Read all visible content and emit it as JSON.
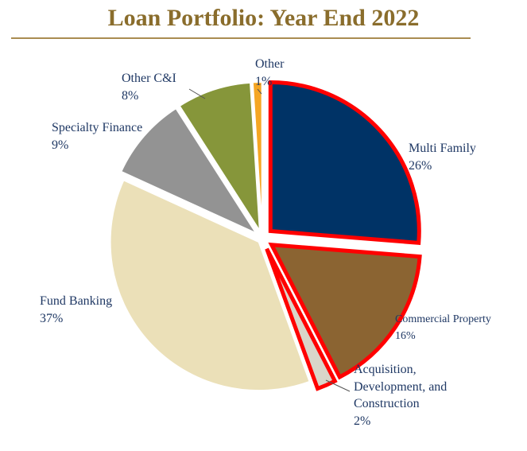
{
  "title": "Loan Portfolio: Year End 2022",
  "chart_data": {
    "type": "pie",
    "title": "Loan Portfolio: Year End 2022",
    "slices": [
      {
        "name": "Multi Family",
        "value": 26,
        "label": "26%",
        "color": "#003366",
        "highlighted": true
      },
      {
        "name": "Commercial Property",
        "value": 16,
        "label": "16%",
        "color": "#8b6432",
        "highlighted": true
      },
      {
        "name": "Acquisition, Development, and Construction",
        "value": 2,
        "label": "2%",
        "color": "#d9d5c9",
        "highlighted": true
      },
      {
        "name": "Fund Banking",
        "value": 37,
        "label": "37%",
        "color": "#ebe0b8",
        "highlighted": false
      },
      {
        "name": "Specialty Finance",
        "value": 9,
        "label": "9%",
        "color": "#939393",
        "highlighted": false
      },
      {
        "name": "Other C&I",
        "value": 8,
        "label": "8%",
        "color": "#86963a",
        "highlighted": false
      },
      {
        "name": "Other",
        "value": 1,
        "label": "1%",
        "color": "#f5a623",
        "highlighted": false
      }
    ],
    "highlight_color": "#ff0000"
  },
  "labels": {
    "multi_family": {
      "name": "Multi Family",
      "pct": "26%"
    },
    "commercial": {
      "name": "Commercial Property",
      "pct": "16%"
    },
    "adc": {
      "line1": "Acquisition,",
      "line2": "Development, and",
      "line3": "Construction",
      "pct": "2%"
    },
    "fund_banking": {
      "name": "Fund Banking",
      "pct": "37%"
    },
    "specialty": {
      "name": "Specialty Finance",
      "pct": "9%"
    },
    "other_ci": {
      "name": "Other C&I",
      "pct": "8%"
    },
    "other": {
      "name": "Other",
      "pct": "1%"
    }
  }
}
